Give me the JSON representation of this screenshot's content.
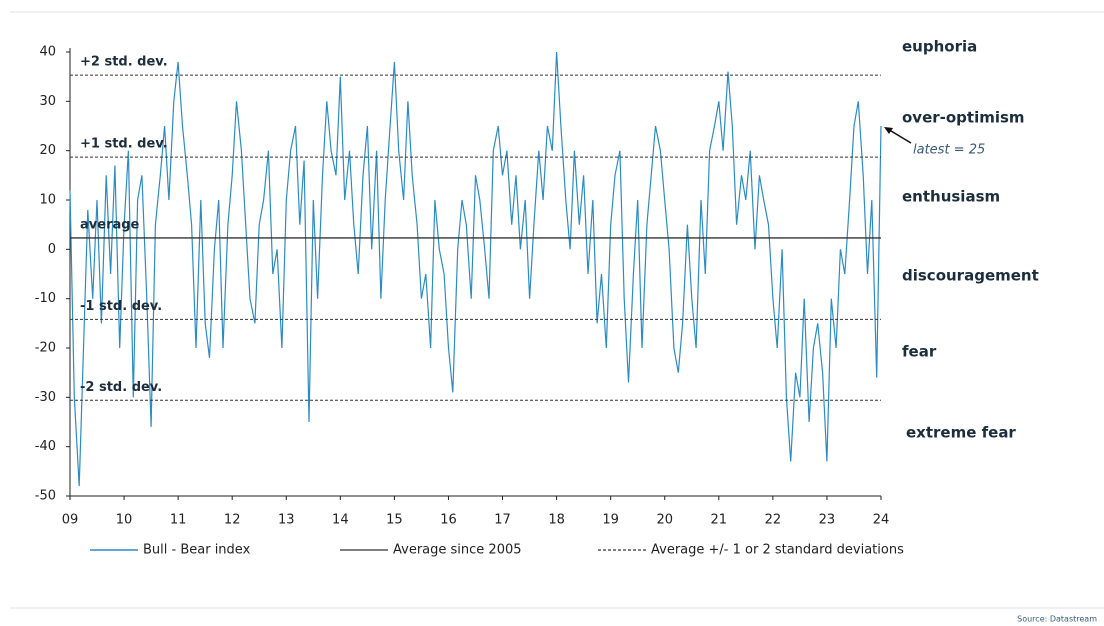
{
  "chart_data": {
    "type": "line",
    "x": [
      2009,
      2009.08,
      2009.17,
      2009.25,
      2009.33,
      2009.42,
      2009.5,
      2009.58,
      2009.67,
      2009.75,
      2009.83,
      2009.92,
      2010,
      2010.08,
      2010.17,
      2010.25,
      2010.33,
      2010.42,
      2010.5,
      2010.58,
      2010.67,
      2010.75,
      2010.83,
      2010.92,
      2011,
      2011.08,
      2011.17,
      2011.25,
      2011.33,
      2011.42,
      2011.5,
      2011.58,
      2011.67,
      2011.75,
      2011.83,
      2011.92,
      2012,
      2012.08,
      2012.17,
      2012.25,
      2012.33,
      2012.42,
      2012.5,
      2012.58,
      2012.67,
      2012.75,
      2012.83,
      2012.92,
      2013,
      2013.08,
      2013.17,
      2013.25,
      2013.33,
      2013.42,
      2013.5,
      2013.58,
      2013.67,
      2013.75,
      2013.83,
      2013.92,
      2014,
      2014.08,
      2014.17,
      2014.25,
      2014.33,
      2014.42,
      2014.5,
      2014.58,
      2014.67,
      2014.75,
      2014.83,
      2014.92,
      2015,
      2015.08,
      2015.17,
      2015.25,
      2015.33,
      2015.42,
      2015.5,
      2015.58,
      2015.67,
      2015.75,
      2015.83,
      2015.92,
      2016,
      2016.08,
      2016.17,
      2016.25,
      2016.33,
      2016.42,
      2016.5,
      2016.58,
      2016.67,
      2016.75,
      2016.83,
      2016.92,
      2017,
      2017.08,
      2017.17,
      2017.25,
      2017.33,
      2017.42,
      2017.5,
      2017.58,
      2017.67,
      2017.75,
      2017.83,
      2017.92,
      2018,
      2018.08,
      2018.17,
      2018.25,
      2018.33,
      2018.42,
      2018.5,
      2018.58,
      2018.67,
      2018.75,
      2018.83,
      2018.92,
      2019,
      2019.08,
      2019.17,
      2019.25,
      2019.33,
      2019.42,
      2019.5,
      2019.58,
      2019.67,
      2019.75,
      2019.83,
      2019.92,
      2020,
      2020.08,
      2020.17,
      2020.25,
      2020.33,
      2020.42,
      2020.5,
      2020.58,
      2020.67,
      2020.75,
      2020.83,
      2020.92,
      2021,
      2021.08,
      2021.17,
      2021.25,
      2021.33,
      2021.42,
      2021.5,
      2021.58,
      2021.67,
      2021.75,
      2021.83,
      2021.92,
      2022,
      2022.08,
      2022.17,
      2022.25,
      2022.33,
      2022.42,
      2022.5,
      2022.58,
      2022.67,
      2022.75,
      2022.83,
      2022.92,
      2023,
      2023.08,
      2023.17,
      2023.25,
      2023.33,
      2023.42,
      2023.5,
      2023.58,
      2023.67,
      2023.75,
      2023.83,
      2023.92,
      2024
    ],
    "series": [
      {
        "name": "Bull - Bear index",
        "color": "#2b8cc4",
        "values": [
          12,
          -30,
          -48,
          -20,
          8,
          -10,
          10,
          -15,
          15,
          -5,
          17,
          -20,
          5,
          20,
          -30,
          10,
          15,
          -10,
          -36,
          5,
          15,
          25,
          10,
          30,
          38,
          25,
          15,
          5,
          -20,
          10,
          -15,
          -22,
          0,
          10,
          -20,
          5,
          15,
          30,
          20,
          5,
          -10,
          -15,
          5,
          10,
          20,
          -5,
          0,
          -20,
          10,
          20,
          25,
          5,
          18,
          -35,
          10,
          -10,
          15,
          30,
          20,
          15,
          35,
          10,
          20,
          5,
          -5,
          15,
          25,
          0,
          20,
          -10,
          10,
          25,
          38,
          20,
          10,
          30,
          15,
          5,
          -10,
          -5,
          -20,
          10,
          0,
          -5,
          -20,
          -29,
          0,
          10,
          5,
          -10,
          15,
          10,
          0,
          -10,
          20,
          25,
          15,
          20,
          5,
          15,
          0,
          10,
          -10,
          5,
          20,
          10,
          25,
          20,
          40,
          25,
          10,
          0,
          20,
          5,
          15,
          -5,
          10,
          -15,
          -5,
          -20,
          5,
          15,
          20,
          -10,
          -27,
          -5,
          10,
          -20,
          5,
          15,
          25,
          20,
          10,
          0,
          -20,
          -25,
          -15,
          5,
          -10,
          -20,
          10,
          -5,
          20,
          25,
          30,
          20,
          36,
          25,
          5,
          15,
          10,
          20,
          0,
          15,
          10,
          5,
          -10,
          -20,
          0,
          -30,
          -43,
          -25,
          -30,
          -10,
          -35,
          -20,
          -15,
          -25,
          -43,
          -10,
          -20,
          0,
          -5,
          10,
          25,
          30,
          15,
          -5,
          10,
          -26,
          25
        ]
      }
    ],
    "xlim": [
      2009,
      2024
    ],
    "xticks": [
      {
        "value": 2009,
        "label": "09"
      },
      {
        "value": 2010,
        "label": "10"
      },
      {
        "value": 2011,
        "label": "11"
      },
      {
        "value": 2012,
        "label": "12"
      },
      {
        "value": 2013,
        "label": "13"
      },
      {
        "value": 2014,
        "label": "14"
      },
      {
        "value": 2015,
        "label": "15"
      },
      {
        "value": 2016,
        "label": "16"
      },
      {
        "value": 2017,
        "label": "17"
      },
      {
        "value": 2018,
        "label": "18"
      },
      {
        "value": 2019,
        "label": "19"
      },
      {
        "value": 2020,
        "label": "20"
      },
      {
        "value": 2021,
        "label": "21"
      },
      {
        "value": 2022,
        "label": "22"
      },
      {
        "value": 2023,
        "label": "23"
      },
      {
        "value": 2024,
        "label": "24"
      }
    ],
    "ylim": [
      -50,
      40
    ],
    "yticks": [
      -50,
      -40,
      -30,
      -20,
      -10,
      0,
      10,
      20,
      30,
      40
    ],
    "reference_lines": [
      {
        "label": "+2 std. dev.",
        "value": 35.3,
        "style": "dashed"
      },
      {
        "label": "+1 std. dev.",
        "value": 18.7,
        "style": "dashed"
      },
      {
        "label": "average",
        "value": 2.3,
        "style": "solid"
      },
      {
        "label": "-1 std. dev.",
        "value": -14.2,
        "style": "dashed"
      },
      {
        "label": "-2 std. dev.",
        "value": -30.6,
        "style": "dashed"
      }
    ],
    "zones": [
      "euphoria",
      "over-optimism",
      "enthusiasm",
      "discouragement",
      "fear",
      "extreme fear"
    ],
    "annotation": "latest = 25",
    "legend_extra": [
      {
        "name": "Average since 2005",
        "style": "solid"
      },
      {
        "name": "Average +/- 1 or 2 standard deviations",
        "style": "dashed"
      }
    ],
    "source": "Source: Datastream"
  }
}
